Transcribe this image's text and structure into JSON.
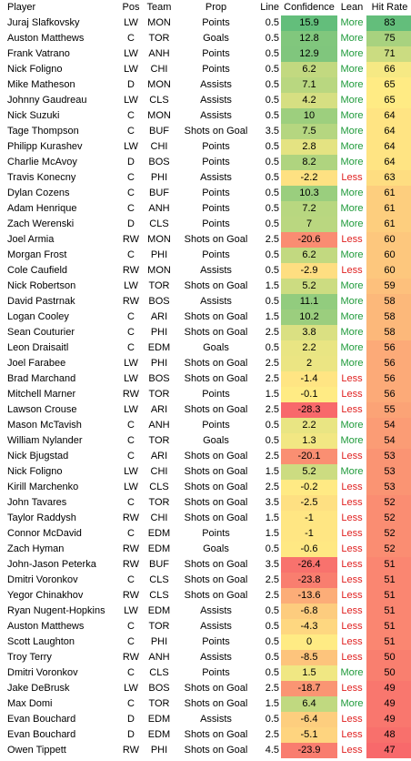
{
  "headers": {
    "player": "Player",
    "pos": "Pos",
    "team": "Team",
    "prop": "Prop",
    "line": "Line",
    "confidence": "Confidence",
    "lean": "Lean",
    "hit_rate": "Hit Rate"
  },
  "colors": {
    "more": "#1e9a3a",
    "less": "#e02020",
    "scale_low": "#f8696b",
    "scale_mid": "#ffeb84",
    "scale_high": "#63be7b"
  },
  "rows": [
    {
      "player": "Juraj Slafkovsky",
      "pos": "LW",
      "team": "MON",
      "prop": "Points",
      "line": "0.5",
      "confidence": "15.9",
      "lean": "More",
      "hit_rate": "83"
    },
    {
      "player": "Auston Matthews",
      "pos": "C",
      "team": "TOR",
      "prop": "Goals",
      "line": "0.5",
      "confidence": "12.8",
      "lean": "More",
      "hit_rate": "75"
    },
    {
      "player": "Frank Vatrano",
      "pos": "LW",
      "team": "ANH",
      "prop": "Points",
      "line": "0.5",
      "confidence": "12.9",
      "lean": "More",
      "hit_rate": "71"
    },
    {
      "player": "Nick Foligno",
      "pos": "LW",
      "team": "CHI",
      "prop": "Points",
      "line": "0.5",
      "confidence": "6.2",
      "lean": "More",
      "hit_rate": "66"
    },
    {
      "player": "Mike Matheson",
      "pos": "D",
      "team": "MON",
      "prop": "Assists",
      "line": "0.5",
      "confidence": "7.1",
      "lean": "More",
      "hit_rate": "65"
    },
    {
      "player": "Johnny Gaudreau",
      "pos": "LW",
      "team": "CLS",
      "prop": "Assists",
      "line": "0.5",
      "confidence": "4.2",
      "lean": "More",
      "hit_rate": "65"
    },
    {
      "player": "Nick Suzuki",
      "pos": "C",
      "team": "MON",
      "prop": "Assists",
      "line": "0.5",
      "confidence": "10",
      "lean": "More",
      "hit_rate": "64"
    },
    {
      "player": "Tage Thompson",
      "pos": "C",
      "team": "BUF",
      "prop": "Shots on Goal",
      "line": "3.5",
      "confidence": "7.5",
      "lean": "More",
      "hit_rate": "64"
    },
    {
      "player": "Philipp Kurashev",
      "pos": "LW",
      "team": "CHI",
      "prop": "Points",
      "line": "0.5",
      "confidence": "2.8",
      "lean": "More",
      "hit_rate": "64"
    },
    {
      "player": "Charlie McAvoy",
      "pos": "D",
      "team": "BOS",
      "prop": "Points",
      "line": "0.5",
      "confidence": "8.2",
      "lean": "More",
      "hit_rate": "64"
    },
    {
      "player": "Travis Konecny",
      "pos": "C",
      "team": "PHI",
      "prop": "Assists",
      "line": "0.5",
      "confidence": "-2.2",
      "lean": "Less",
      "hit_rate": "63"
    },
    {
      "player": "Dylan Cozens",
      "pos": "C",
      "team": "BUF",
      "prop": "Points",
      "line": "0.5",
      "confidence": "10.3",
      "lean": "More",
      "hit_rate": "61"
    },
    {
      "player": "Adam Henrique",
      "pos": "C",
      "team": "ANH",
      "prop": "Points",
      "line": "0.5",
      "confidence": "7.2",
      "lean": "More",
      "hit_rate": "61"
    },
    {
      "player": "Zach Werenski",
      "pos": "D",
      "team": "CLS",
      "prop": "Points",
      "line": "0.5",
      "confidence": "7",
      "lean": "More",
      "hit_rate": "61"
    },
    {
      "player": "Joel Armia",
      "pos": "RW",
      "team": "MON",
      "prop": "Shots on Goal",
      "line": "2.5",
      "confidence": "-20.6",
      "lean": "Less",
      "hit_rate": "60"
    },
    {
      "player": "Morgan Frost",
      "pos": "C",
      "team": "PHI",
      "prop": "Points",
      "line": "0.5",
      "confidence": "6.2",
      "lean": "More",
      "hit_rate": "60"
    },
    {
      "player": "Cole Caufield",
      "pos": "RW",
      "team": "MON",
      "prop": "Assists",
      "line": "0.5",
      "confidence": "-2.9",
      "lean": "Less",
      "hit_rate": "60"
    },
    {
      "player": "Nick Robertson",
      "pos": "LW",
      "team": "TOR",
      "prop": "Shots on Goal",
      "line": "1.5",
      "confidence": "5.2",
      "lean": "More",
      "hit_rate": "59"
    },
    {
      "player": "David Pastrnak",
      "pos": "RW",
      "team": "BOS",
      "prop": "Assists",
      "line": "0.5",
      "confidence": "11.1",
      "lean": "More",
      "hit_rate": "58"
    },
    {
      "player": "Logan Cooley",
      "pos": "C",
      "team": "ARI",
      "prop": "Shots on Goal",
      "line": "1.5",
      "confidence": "10.2",
      "lean": "More",
      "hit_rate": "58"
    },
    {
      "player": "Sean Couturier",
      "pos": "C",
      "team": "PHI",
      "prop": "Shots on Goal",
      "line": "2.5",
      "confidence": "3.8",
      "lean": "More",
      "hit_rate": "58"
    },
    {
      "player": "Leon Draisaitl",
      "pos": "C",
      "team": "EDM",
      "prop": "Goals",
      "line": "0.5",
      "confidence": "2.2",
      "lean": "More",
      "hit_rate": "56"
    },
    {
      "player": "Joel Farabee",
      "pos": "LW",
      "team": "PHI",
      "prop": "Shots on Goal",
      "line": "2.5",
      "confidence": "2",
      "lean": "More",
      "hit_rate": "56"
    },
    {
      "player": "Brad Marchand",
      "pos": "LW",
      "team": "BOS",
      "prop": "Shots on Goal",
      "line": "2.5",
      "confidence": "-1.4",
      "lean": "Less",
      "hit_rate": "56"
    },
    {
      "player": "Mitchell Marner",
      "pos": "RW",
      "team": "TOR",
      "prop": "Points",
      "line": "1.5",
      "confidence": "-0.1",
      "lean": "Less",
      "hit_rate": "56"
    },
    {
      "player": "Lawson Crouse",
      "pos": "LW",
      "team": "ARI",
      "prop": "Shots on Goal",
      "line": "2.5",
      "confidence": "-28.3",
      "lean": "Less",
      "hit_rate": "55"
    },
    {
      "player": "Mason McTavish",
      "pos": "C",
      "team": "ANH",
      "prop": "Points",
      "line": "0.5",
      "confidence": "2.2",
      "lean": "More",
      "hit_rate": "54"
    },
    {
      "player": "William Nylander",
      "pos": "C",
      "team": "TOR",
      "prop": "Goals",
      "line": "0.5",
      "confidence": "1.3",
      "lean": "More",
      "hit_rate": "54"
    },
    {
      "player": "Nick Bjugstad",
      "pos": "C",
      "team": "ARI",
      "prop": "Shots on Goal",
      "line": "2.5",
      "confidence": "-20.1",
      "lean": "Less",
      "hit_rate": "53"
    },
    {
      "player": "Nick Foligno",
      "pos": "LW",
      "team": "CHI",
      "prop": "Shots on Goal",
      "line": "1.5",
      "confidence": "5.2",
      "lean": "More",
      "hit_rate": "53"
    },
    {
      "player": "Kirill Marchenko",
      "pos": "LW",
      "team": "CLS",
      "prop": "Shots on Goal",
      "line": "2.5",
      "confidence": "-0.2",
      "lean": "Less",
      "hit_rate": "53"
    },
    {
      "player": "John Tavares",
      "pos": "C",
      "team": "TOR",
      "prop": "Shots on Goal",
      "line": "3.5",
      "confidence": "-2.5",
      "lean": "Less",
      "hit_rate": "52"
    },
    {
      "player": "Taylor Raddysh",
      "pos": "RW",
      "team": "CHI",
      "prop": "Shots on Goal",
      "line": "1.5",
      "confidence": "-1",
      "lean": "Less",
      "hit_rate": "52"
    },
    {
      "player": "Connor McDavid",
      "pos": "C",
      "team": "EDM",
      "prop": "Points",
      "line": "1.5",
      "confidence": "-1",
      "lean": "Less",
      "hit_rate": "52"
    },
    {
      "player": "Zach Hyman",
      "pos": "RW",
      "team": "EDM",
      "prop": "Goals",
      "line": "0.5",
      "confidence": "-0.6",
      "lean": "Less",
      "hit_rate": "52"
    },
    {
      "player": "John-Jason Peterka",
      "pos": "RW",
      "team": "BUF",
      "prop": "Shots on Goal",
      "line": "3.5",
      "confidence": "-26.4",
      "lean": "Less",
      "hit_rate": "51"
    },
    {
      "player": "Dmitri Voronkov",
      "pos": "C",
      "team": "CLS",
      "prop": "Shots on Goal",
      "line": "2.5",
      "confidence": "-23.8",
      "lean": "Less",
      "hit_rate": "51"
    },
    {
      "player": "Yegor Chinakhov",
      "pos": "RW",
      "team": "CLS",
      "prop": "Shots on Goal",
      "line": "2.5",
      "confidence": "-13.6",
      "lean": "Less",
      "hit_rate": "51"
    },
    {
      "player": "Ryan Nugent-Hopkins",
      "pos": "LW",
      "team": "EDM",
      "prop": "Assists",
      "line": "0.5",
      "confidence": "-6.8",
      "lean": "Less",
      "hit_rate": "51"
    },
    {
      "player": "Auston Matthews",
      "pos": "C",
      "team": "TOR",
      "prop": "Assists",
      "line": "0.5",
      "confidence": "-4.3",
      "lean": "Less",
      "hit_rate": "51"
    },
    {
      "player": "Scott Laughton",
      "pos": "C",
      "team": "PHI",
      "prop": "Points",
      "line": "0.5",
      "confidence": "0",
      "lean": "Less",
      "hit_rate": "51"
    },
    {
      "player": "Troy Terry",
      "pos": "RW",
      "team": "ANH",
      "prop": "Assists",
      "line": "0.5",
      "confidence": "-8.5",
      "lean": "Less",
      "hit_rate": "50"
    },
    {
      "player": "Dmitri Voronkov",
      "pos": "C",
      "team": "CLS",
      "prop": "Points",
      "line": "0.5",
      "confidence": "1.5",
      "lean": "More",
      "hit_rate": "50"
    },
    {
      "player": "Jake DeBrusk",
      "pos": "LW",
      "team": "BOS",
      "prop": "Shots on Goal",
      "line": "2.5",
      "confidence": "-18.7",
      "lean": "Less",
      "hit_rate": "49"
    },
    {
      "player": "Max Domi",
      "pos": "C",
      "team": "TOR",
      "prop": "Shots on Goal",
      "line": "1.5",
      "confidence": "6.4",
      "lean": "More",
      "hit_rate": "49"
    },
    {
      "player": "Evan Bouchard",
      "pos": "D",
      "team": "EDM",
      "prop": "Assists",
      "line": "0.5",
      "confidence": "-6.4",
      "lean": "Less",
      "hit_rate": "49"
    },
    {
      "player": "Evan Bouchard",
      "pos": "D",
      "team": "EDM",
      "prop": "Shots on Goal",
      "line": "2.5",
      "confidence": "-5.1",
      "lean": "Less",
      "hit_rate": "48"
    },
    {
      "player": "Owen Tippett",
      "pos": "RW",
      "team": "PHI",
      "prop": "Shots on Goal",
      "line": "4.5",
      "confidence": "-23.9",
      "lean": "Less",
      "hit_rate": "47"
    }
  ]
}
